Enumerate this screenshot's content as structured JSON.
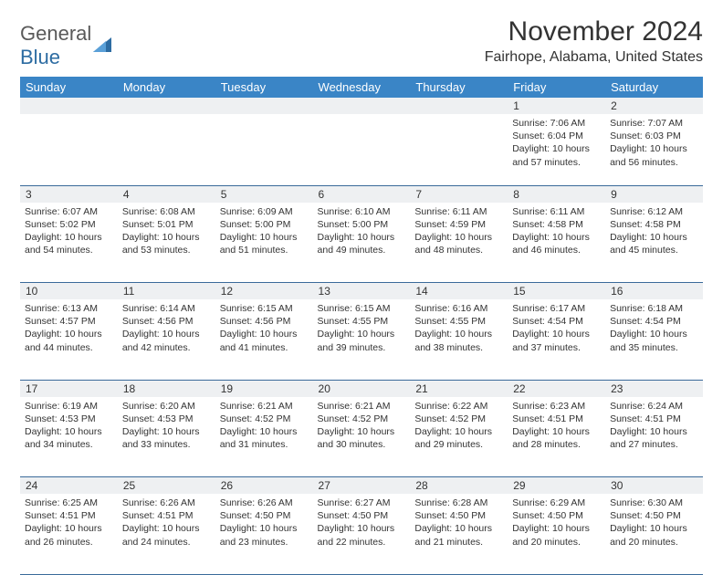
{
  "logo": {
    "text_general": "General",
    "text_blue": "Blue"
  },
  "header": {
    "month_title": "November 2024",
    "location": "Fairhope, Alabama, United States"
  },
  "colors": {
    "header_bg": "#3a85c6",
    "header_text": "#ffffff",
    "daynum_bg": "#eef0f2",
    "cell_border": "#3a6a9a",
    "text": "#333333",
    "logo_gray": "#5a5a5a",
    "logo_blue": "#2d6ca2"
  },
  "weekdays": [
    "Sunday",
    "Monday",
    "Tuesday",
    "Wednesday",
    "Thursday",
    "Friday",
    "Saturday"
  ],
  "weeks": [
    [
      {
        "n": "",
        "sr": "",
        "ss": "",
        "dl": ""
      },
      {
        "n": "",
        "sr": "",
        "ss": "",
        "dl": ""
      },
      {
        "n": "",
        "sr": "",
        "ss": "",
        "dl": ""
      },
      {
        "n": "",
        "sr": "",
        "ss": "",
        "dl": ""
      },
      {
        "n": "",
        "sr": "",
        "ss": "",
        "dl": ""
      },
      {
        "n": "1",
        "sr": "Sunrise: 7:06 AM",
        "ss": "Sunset: 6:04 PM",
        "dl": "Daylight: 10 hours and 57 minutes."
      },
      {
        "n": "2",
        "sr": "Sunrise: 7:07 AM",
        "ss": "Sunset: 6:03 PM",
        "dl": "Daylight: 10 hours and 56 minutes."
      }
    ],
    [
      {
        "n": "3",
        "sr": "Sunrise: 6:07 AM",
        "ss": "Sunset: 5:02 PM",
        "dl": "Daylight: 10 hours and 54 minutes."
      },
      {
        "n": "4",
        "sr": "Sunrise: 6:08 AM",
        "ss": "Sunset: 5:01 PM",
        "dl": "Daylight: 10 hours and 53 minutes."
      },
      {
        "n": "5",
        "sr": "Sunrise: 6:09 AM",
        "ss": "Sunset: 5:00 PM",
        "dl": "Daylight: 10 hours and 51 minutes."
      },
      {
        "n": "6",
        "sr": "Sunrise: 6:10 AM",
        "ss": "Sunset: 5:00 PM",
        "dl": "Daylight: 10 hours and 49 minutes."
      },
      {
        "n": "7",
        "sr": "Sunrise: 6:11 AM",
        "ss": "Sunset: 4:59 PM",
        "dl": "Daylight: 10 hours and 48 minutes."
      },
      {
        "n": "8",
        "sr": "Sunrise: 6:11 AM",
        "ss": "Sunset: 4:58 PM",
        "dl": "Daylight: 10 hours and 46 minutes."
      },
      {
        "n": "9",
        "sr": "Sunrise: 6:12 AM",
        "ss": "Sunset: 4:58 PM",
        "dl": "Daylight: 10 hours and 45 minutes."
      }
    ],
    [
      {
        "n": "10",
        "sr": "Sunrise: 6:13 AM",
        "ss": "Sunset: 4:57 PM",
        "dl": "Daylight: 10 hours and 44 minutes."
      },
      {
        "n": "11",
        "sr": "Sunrise: 6:14 AM",
        "ss": "Sunset: 4:56 PM",
        "dl": "Daylight: 10 hours and 42 minutes."
      },
      {
        "n": "12",
        "sr": "Sunrise: 6:15 AM",
        "ss": "Sunset: 4:56 PM",
        "dl": "Daylight: 10 hours and 41 minutes."
      },
      {
        "n": "13",
        "sr": "Sunrise: 6:15 AM",
        "ss": "Sunset: 4:55 PM",
        "dl": "Daylight: 10 hours and 39 minutes."
      },
      {
        "n": "14",
        "sr": "Sunrise: 6:16 AM",
        "ss": "Sunset: 4:55 PM",
        "dl": "Daylight: 10 hours and 38 minutes."
      },
      {
        "n": "15",
        "sr": "Sunrise: 6:17 AM",
        "ss": "Sunset: 4:54 PM",
        "dl": "Daylight: 10 hours and 37 minutes."
      },
      {
        "n": "16",
        "sr": "Sunrise: 6:18 AM",
        "ss": "Sunset: 4:54 PM",
        "dl": "Daylight: 10 hours and 35 minutes."
      }
    ],
    [
      {
        "n": "17",
        "sr": "Sunrise: 6:19 AM",
        "ss": "Sunset: 4:53 PM",
        "dl": "Daylight: 10 hours and 34 minutes."
      },
      {
        "n": "18",
        "sr": "Sunrise: 6:20 AM",
        "ss": "Sunset: 4:53 PM",
        "dl": "Daylight: 10 hours and 33 minutes."
      },
      {
        "n": "19",
        "sr": "Sunrise: 6:21 AM",
        "ss": "Sunset: 4:52 PM",
        "dl": "Daylight: 10 hours and 31 minutes."
      },
      {
        "n": "20",
        "sr": "Sunrise: 6:21 AM",
        "ss": "Sunset: 4:52 PM",
        "dl": "Daylight: 10 hours and 30 minutes."
      },
      {
        "n": "21",
        "sr": "Sunrise: 6:22 AM",
        "ss": "Sunset: 4:52 PM",
        "dl": "Daylight: 10 hours and 29 minutes."
      },
      {
        "n": "22",
        "sr": "Sunrise: 6:23 AM",
        "ss": "Sunset: 4:51 PM",
        "dl": "Daylight: 10 hours and 28 minutes."
      },
      {
        "n": "23",
        "sr": "Sunrise: 6:24 AM",
        "ss": "Sunset: 4:51 PM",
        "dl": "Daylight: 10 hours and 27 minutes."
      }
    ],
    [
      {
        "n": "24",
        "sr": "Sunrise: 6:25 AM",
        "ss": "Sunset: 4:51 PM",
        "dl": "Daylight: 10 hours and 26 minutes."
      },
      {
        "n": "25",
        "sr": "Sunrise: 6:26 AM",
        "ss": "Sunset: 4:51 PM",
        "dl": "Daylight: 10 hours and 24 minutes."
      },
      {
        "n": "26",
        "sr": "Sunrise: 6:26 AM",
        "ss": "Sunset: 4:50 PM",
        "dl": "Daylight: 10 hours and 23 minutes."
      },
      {
        "n": "27",
        "sr": "Sunrise: 6:27 AM",
        "ss": "Sunset: 4:50 PM",
        "dl": "Daylight: 10 hours and 22 minutes."
      },
      {
        "n": "28",
        "sr": "Sunrise: 6:28 AM",
        "ss": "Sunset: 4:50 PM",
        "dl": "Daylight: 10 hours and 21 minutes."
      },
      {
        "n": "29",
        "sr": "Sunrise: 6:29 AM",
        "ss": "Sunset: 4:50 PM",
        "dl": "Daylight: 10 hours and 20 minutes."
      },
      {
        "n": "30",
        "sr": "Sunrise: 6:30 AM",
        "ss": "Sunset: 4:50 PM",
        "dl": "Daylight: 10 hours and 20 minutes."
      }
    ]
  ]
}
